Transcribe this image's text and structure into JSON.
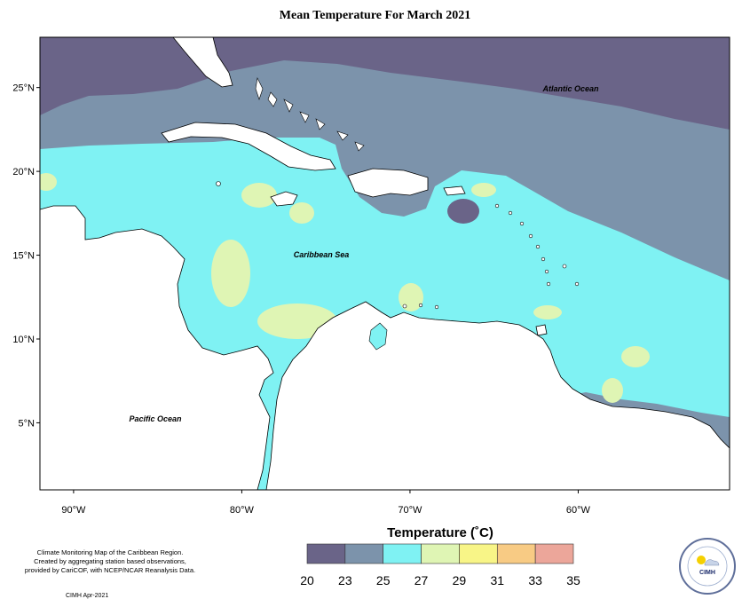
{
  "title": "Mean Temperature For March 2021",
  "map": {
    "bounds": {
      "lon_min": -92,
      "lon_max": -51,
      "lat_min": 1,
      "lat_max": 28
    },
    "lat_ticks": [
      {
        "value": 25,
        "label": "25°N"
      },
      {
        "value": 20,
        "label": "20°N"
      },
      {
        "value": 15,
        "label": "15°N"
      },
      {
        "value": 10,
        "label": "10°N"
      },
      {
        "value": 5,
        "label": "5°N"
      }
    ],
    "lon_ticks": [
      {
        "value": -90,
        "label": "90°W"
      },
      {
        "value": -80,
        "label": "80°W"
      },
      {
        "value": -70,
        "label": "70°W"
      },
      {
        "value": -60,
        "label": "60°W"
      }
    ],
    "labels": {
      "atlantic": "Atlantic Ocean",
      "caribbean": "Caribbean Sea",
      "pacific": "Pacific Ocean"
    }
  },
  "legend": {
    "title": "Temperature (˚C)",
    "bins": [
      {
        "color": "#6a6488"
      },
      {
        "color": "#7c93ab"
      },
      {
        "color": "#7ff2f3"
      },
      {
        "color": "#dff5b4"
      },
      {
        "color": "#f8f587"
      },
      {
        "color": "#f8cb84"
      },
      {
        "color": "#eca69a"
      }
    ],
    "ticks": [
      "20",
      "23",
      "25",
      "27",
      "29",
      "31",
      "33",
      "35"
    ]
  },
  "caption": {
    "line1": "Climate Monitoring Map of the Caribbean Region.",
    "line2": "Created by aggregating station based observations,",
    "line3": "provided by CariCOF, with NCEP/NCAR Reanalysis Data."
  },
  "credit": "CIMH Apr-2021",
  "logo": {
    "text": "CIMH"
  }
}
